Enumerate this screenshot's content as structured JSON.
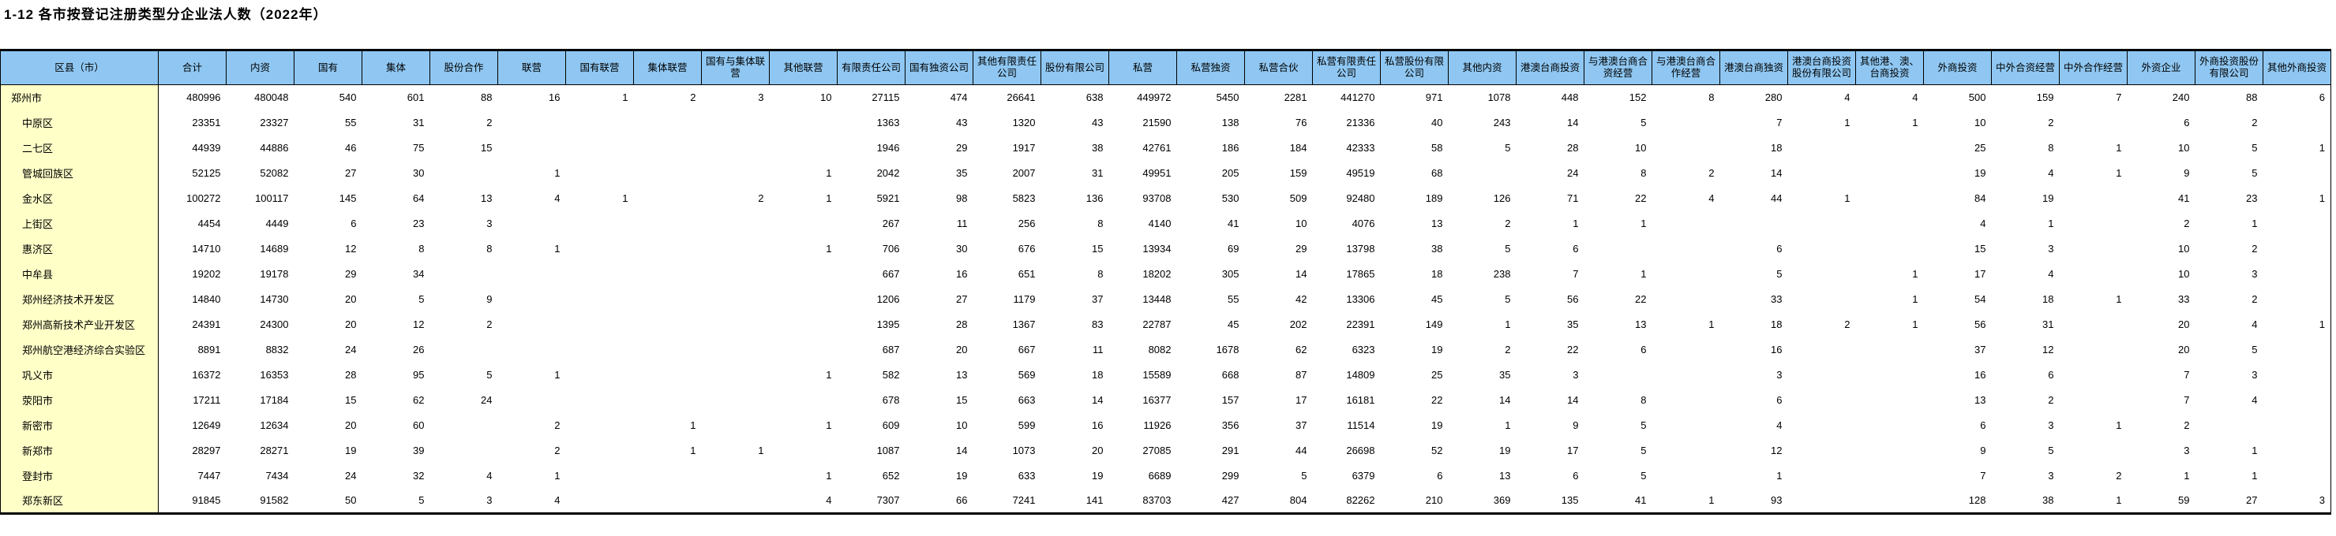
{
  "title": "1-12 各市按登记注册类型分企业法人数（2022年）",
  "table": {
    "header_bg": "#8fc7f2",
    "rowlabel_bg": "#ffffc8",
    "columns": [
      "区县（市）",
      "合计",
      "内资",
      "国有",
      "集体",
      "股份合作",
      "联营",
      "国有联营",
      "集体联营",
      "国有与集体联营",
      "其他联营",
      "有限责任公司",
      "国有独资公司",
      "其他有限责任公司",
      "股份有限公司",
      "私营",
      "私营独资",
      "私营合伙",
      "私营有限责任公司",
      "私营股份有限公司",
      "其他内资",
      "港澳台商投资",
      "与港澳台商合资经营",
      "与港澳台商合作经营",
      "港澳台商独资",
      "港澳台商投资股份有限公司",
      "其他港、澳、台商投资",
      "外商投资",
      "中外合资经营",
      "中外合作经营",
      "外资企业",
      "外商投资股份有限公司",
      "其他外商投资"
    ],
    "rows": [
      {
        "label": "郑州市",
        "level": 0,
        "values": [
          "480996",
          "480048",
          "540",
          "601",
          "88",
          "16",
          "1",
          "2",
          "3",
          "10",
          "27115",
          "474",
          "26641",
          "638",
          "449972",
          "5450",
          "2281",
          "441270",
          "971",
          "1078",
          "448",
          "152",
          "8",
          "280",
          "4",
          "4",
          "500",
          "159",
          "7",
          "240",
          "88",
          "6"
        ]
      },
      {
        "label": "中原区",
        "level": 1,
        "values": [
          "23351",
          "23327",
          "55",
          "31",
          "2",
          "",
          "",
          "",
          "",
          "",
          "1363",
          "43",
          "1320",
          "43",
          "21590",
          "138",
          "76",
          "21336",
          "40",
          "243",
          "14",
          "5",
          "",
          "7",
          "1",
          "1",
          "10",
          "2",
          "",
          "6",
          "2",
          ""
        ]
      },
      {
        "label": "二七区",
        "level": 1,
        "values": [
          "44939",
          "44886",
          "46",
          "75",
          "15",
          "",
          "",
          "",
          "",
          "",
          "1946",
          "29",
          "1917",
          "38",
          "42761",
          "186",
          "184",
          "42333",
          "58",
          "5",
          "28",
          "10",
          "",
          "18",
          "",
          "",
          "25",
          "8",
          "1",
          "10",
          "5",
          "1"
        ]
      },
      {
        "label": "管城回族区",
        "level": 1,
        "values": [
          "52125",
          "52082",
          "27",
          "30",
          "",
          "1",
          "",
          "",
          "",
          "1",
          "2042",
          "35",
          "2007",
          "31",
          "49951",
          "205",
          "159",
          "49519",
          "68",
          "",
          "24",
          "8",
          "2",
          "14",
          "",
          "",
          "19",
          "4",
          "1",
          "9",
          "5",
          ""
        ]
      },
      {
        "label": "金水区",
        "level": 1,
        "values": [
          "100272",
          "100117",
          "145",
          "64",
          "13",
          "4",
          "1",
          "",
          "2",
          "1",
          "5921",
          "98",
          "5823",
          "136",
          "93708",
          "530",
          "509",
          "92480",
          "189",
          "126",
          "71",
          "22",
          "4",
          "44",
          "1",
          "",
          "84",
          "19",
          "",
          "41",
          "23",
          "1"
        ]
      },
      {
        "label": "上街区",
        "level": 1,
        "values": [
          "4454",
          "4449",
          "6",
          "23",
          "3",
          "",
          "",
          "",
          "",
          "",
          "267",
          "11",
          "256",
          "8",
          "4140",
          "41",
          "10",
          "4076",
          "13",
          "2",
          "1",
          "1",
          "",
          "",
          "",
          "",
          "4",
          "1",
          "",
          "2",
          "1",
          ""
        ]
      },
      {
        "label": "惠济区",
        "level": 1,
        "values": [
          "14710",
          "14689",
          "12",
          "8",
          "8",
          "1",
          "",
          "",
          "",
          "1",
          "706",
          "30",
          "676",
          "15",
          "13934",
          "69",
          "29",
          "13798",
          "38",
          "5",
          "6",
          "",
          "",
          "6",
          "",
          "",
          "15",
          "3",
          "",
          "10",
          "2",
          ""
        ]
      },
      {
        "label": "中牟县",
        "level": 1,
        "values": [
          "19202",
          "19178",
          "29",
          "34",
          "",
          "",
          "",
          "",
          "",
          "",
          "667",
          "16",
          "651",
          "8",
          "18202",
          "305",
          "14",
          "17865",
          "18",
          "238",
          "7",
          "1",
          "",
          "5",
          "",
          "1",
          "17",
          "4",
          "",
          "10",
          "3",
          ""
        ]
      },
      {
        "label": "郑州经济技术开发区",
        "level": 1,
        "values": [
          "14840",
          "14730",
          "20",
          "5",
          "9",
          "",
          "",
          "",
          "",
          "",
          "1206",
          "27",
          "1179",
          "37",
          "13448",
          "55",
          "42",
          "13306",
          "45",
          "5",
          "56",
          "22",
          "",
          "33",
          "",
          "1",
          "54",
          "18",
          "1",
          "33",
          "2",
          ""
        ]
      },
      {
        "label": "郑州高新技术产业开发区",
        "level": 1,
        "values": [
          "24391",
          "24300",
          "20",
          "12",
          "2",
          "",
          "",
          "",
          "",
          "",
          "1395",
          "28",
          "1367",
          "83",
          "22787",
          "45",
          "202",
          "22391",
          "149",
          "1",
          "35",
          "13",
          "1",
          "18",
          "2",
          "1",
          "56",
          "31",
          "",
          "20",
          "4",
          "1"
        ]
      },
      {
        "label": "郑州航空港经济综合实验区",
        "level": 1,
        "values": [
          "8891",
          "8832",
          "24",
          "26",
          "",
          "",
          "",
          "",
          "",
          "",
          "687",
          "20",
          "667",
          "11",
          "8082",
          "1678",
          "62",
          "6323",
          "19",
          "2",
          "22",
          "6",
          "",
          "16",
          "",
          "",
          "37",
          "12",
          "",
          "20",
          "5",
          ""
        ]
      },
      {
        "label": "巩义市",
        "level": 1,
        "values": [
          "16372",
          "16353",
          "28",
          "95",
          "5",
          "1",
          "",
          "",
          "",
          "1",
          "582",
          "13",
          "569",
          "18",
          "15589",
          "668",
          "87",
          "14809",
          "25",
          "35",
          "3",
          "",
          "",
          "3",
          "",
          "",
          "16",
          "6",
          "",
          "7",
          "3",
          ""
        ]
      },
      {
        "label": "荥阳市",
        "level": 1,
        "values": [
          "17211",
          "17184",
          "15",
          "62",
          "24",
          "",
          "",
          "",
          "",
          "",
          "678",
          "15",
          "663",
          "14",
          "16377",
          "157",
          "17",
          "16181",
          "22",
          "14",
          "14",
          "8",
          "",
          "6",
          "",
          "",
          "13",
          "2",
          "",
          "7",
          "4",
          ""
        ]
      },
      {
        "label": "新密市",
        "level": 1,
        "values": [
          "12649",
          "12634",
          "20",
          "60",
          "",
          "2",
          "",
          "1",
          "",
          "1",
          "609",
          "10",
          "599",
          "16",
          "11926",
          "356",
          "37",
          "11514",
          "19",
          "1",
          "9",
          "5",
          "",
          "4",
          "",
          "",
          "6",
          "3",
          "1",
          "2",
          "",
          ""
        ]
      },
      {
        "label": "新郑市",
        "level": 1,
        "values": [
          "28297",
          "28271",
          "19",
          "39",
          "",
          "2",
          "",
          "1",
          "1",
          "",
          "1087",
          "14",
          "1073",
          "20",
          "27085",
          "291",
          "44",
          "26698",
          "52",
          "19",
          "17",
          "5",
          "",
          "12",
          "",
          "",
          "9",
          "5",
          "",
          "3",
          "1",
          ""
        ]
      },
      {
        "label": "登封市",
        "level": 1,
        "values": [
          "7447",
          "7434",
          "24",
          "32",
          "4",
          "1",
          "",
          "",
          "",
          "1",
          "652",
          "19",
          "633",
          "19",
          "6689",
          "299",
          "5",
          "6379",
          "6",
          "13",
          "6",
          "5",
          "",
          "1",
          "",
          "",
          "7",
          "3",
          "2",
          "1",
          "1",
          ""
        ]
      },
      {
        "label": "郑东新区",
        "level": 1,
        "values": [
          "91845",
          "91582",
          "50",
          "5",
          "3",
          "4",
          "",
          "",
          "",
          "4",
          "7307",
          "66",
          "7241",
          "141",
          "83703",
          "427",
          "804",
          "82262",
          "210",
          "369",
          "135",
          "41",
          "1",
          "93",
          "",
          "",
          "128",
          "38",
          "1",
          "59",
          "27",
          "3"
        ]
      }
    ]
  }
}
